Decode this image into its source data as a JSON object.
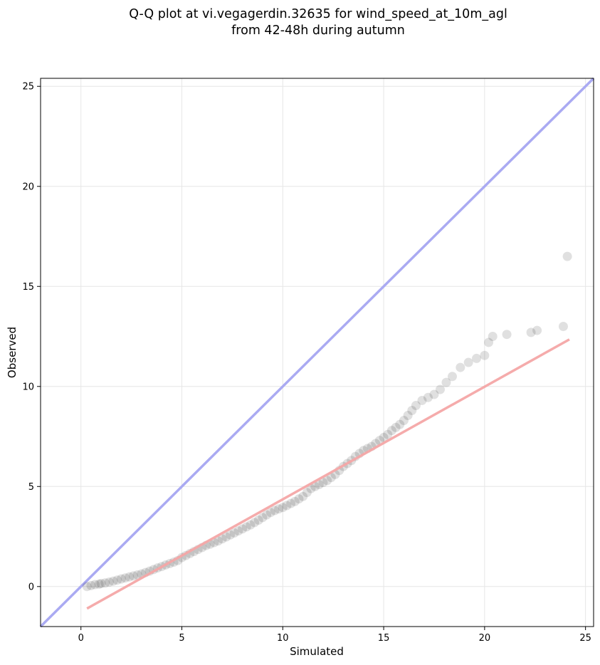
{
  "chart_data": {
    "type": "scatter",
    "title_line1": "Q-Q plot at vi.vegagerdin.32635 for wind_speed_at_10m_agl",
    "title_line2": "from 42-48h during autumn",
    "xlabel": "Simulated",
    "ylabel": "Observed",
    "xlim": [
      -2,
      25.4
    ],
    "ylim": [
      -2,
      25.4
    ],
    "xticks": [
      0,
      5,
      10,
      15,
      20,
      25
    ],
    "yticks": [
      0,
      5,
      10,
      15,
      20,
      25
    ],
    "grid": true,
    "identity_line_color": "#aaaaf2",
    "fit_line": {
      "color": "#f4a6a6",
      "x": [
        0.3,
        24.2
      ],
      "y": [
        -1.1,
        12.35
      ]
    },
    "points_color": "#000000",
    "points": [
      [
        0.3,
        0.0
      ],
      [
        0.5,
        0.05
      ],
      [
        0.7,
        0.1
      ],
      [
        0.9,
        0.12
      ],
      [
        1.0,
        0.15
      ],
      [
        1.2,
        0.18
      ],
      [
        1.4,
        0.22
      ],
      [
        1.6,
        0.27
      ],
      [
        1.8,
        0.32
      ],
      [
        2.0,
        0.38
      ],
      [
        2.2,
        0.43
      ],
      [
        2.4,
        0.48
      ],
      [
        2.6,
        0.53
      ],
      [
        2.8,
        0.58
      ],
      [
        3.0,
        0.63
      ],
      [
        3.2,
        0.7
      ],
      [
        3.4,
        0.77
      ],
      [
        3.6,
        0.85
      ],
      [
        3.8,
        0.93
      ],
      [
        4.0,
        1.0
      ],
      [
        4.2,
        1.08
      ],
      [
        4.4,
        1.15
      ],
      [
        4.6,
        1.22
      ],
      [
        4.8,
        1.3
      ],
      [
        5.0,
        1.45
      ],
      [
        5.2,
        1.55
      ],
      [
        5.4,
        1.65
      ],
      [
        5.6,
        1.75
      ],
      [
        5.8,
        1.85
      ],
      [
        6.0,
        1.95
      ],
      [
        6.2,
        2.05
      ],
      [
        6.4,
        2.12
      ],
      [
        6.6,
        2.2
      ],
      [
        6.8,
        2.28
      ],
      [
        7.0,
        2.38
      ],
      [
        7.2,
        2.48
      ],
      [
        7.4,
        2.58
      ],
      [
        7.6,
        2.68
      ],
      [
        7.8,
        2.78
      ],
      [
        8.0,
        2.88
      ],
      [
        8.2,
        2.98
      ],
      [
        8.4,
        3.08
      ],
      [
        8.6,
        3.2
      ],
      [
        8.8,
        3.32
      ],
      [
        9.0,
        3.45
      ],
      [
        9.2,
        3.58
      ],
      [
        9.4,
        3.7
      ],
      [
        9.6,
        3.8
      ],
      [
        9.8,
        3.88
      ],
      [
        10.0,
        3.95
      ],
      [
        10.2,
        4.05
      ],
      [
        10.4,
        4.15
      ],
      [
        10.6,
        4.25
      ],
      [
        10.8,
        4.38
      ],
      [
        11.0,
        4.5
      ],
      [
        11.2,
        4.7
      ],
      [
        11.4,
        4.9
      ],
      [
        11.6,
        5.0
      ],
      [
        11.8,
        5.1
      ],
      [
        12.0,
        5.2
      ],
      [
        12.2,
        5.3
      ],
      [
        12.4,
        5.45
      ],
      [
        12.6,
        5.6
      ],
      [
        12.8,
        5.8
      ],
      [
        13.0,
        6.0
      ],
      [
        13.2,
        6.15
      ],
      [
        13.4,
        6.3
      ],
      [
        13.6,
        6.5
      ],
      [
        13.8,
        6.65
      ],
      [
        14.0,
        6.8
      ],
      [
        14.2,
        6.9
      ],
      [
        14.4,
        7.0
      ],
      [
        14.6,
        7.15
      ],
      [
        14.8,
        7.3
      ],
      [
        15.0,
        7.45
      ],
      [
        15.2,
        7.6
      ],
      [
        15.4,
        7.8
      ],
      [
        15.6,
        7.95
      ],
      [
        15.8,
        8.1
      ],
      [
        16.0,
        8.3
      ],
      [
        16.2,
        8.55
      ],
      [
        16.4,
        8.8
      ],
      [
        16.6,
        9.05
      ],
      [
        16.9,
        9.3
      ],
      [
        17.2,
        9.45
      ],
      [
        17.5,
        9.6
      ],
      [
        17.8,
        9.85
      ],
      [
        18.1,
        10.2
      ],
      [
        18.4,
        10.5
      ],
      [
        18.8,
        10.95
      ],
      [
        19.2,
        11.2
      ],
      [
        19.6,
        11.4
      ],
      [
        20.0,
        11.55
      ],
      [
        20.2,
        12.2
      ],
      [
        20.4,
        12.5
      ],
      [
        21.1,
        12.6
      ],
      [
        22.3,
        12.7
      ],
      [
        22.6,
        12.8
      ],
      [
        23.9,
        13.0
      ],
      [
        24.1,
        16.5
      ]
    ]
  }
}
